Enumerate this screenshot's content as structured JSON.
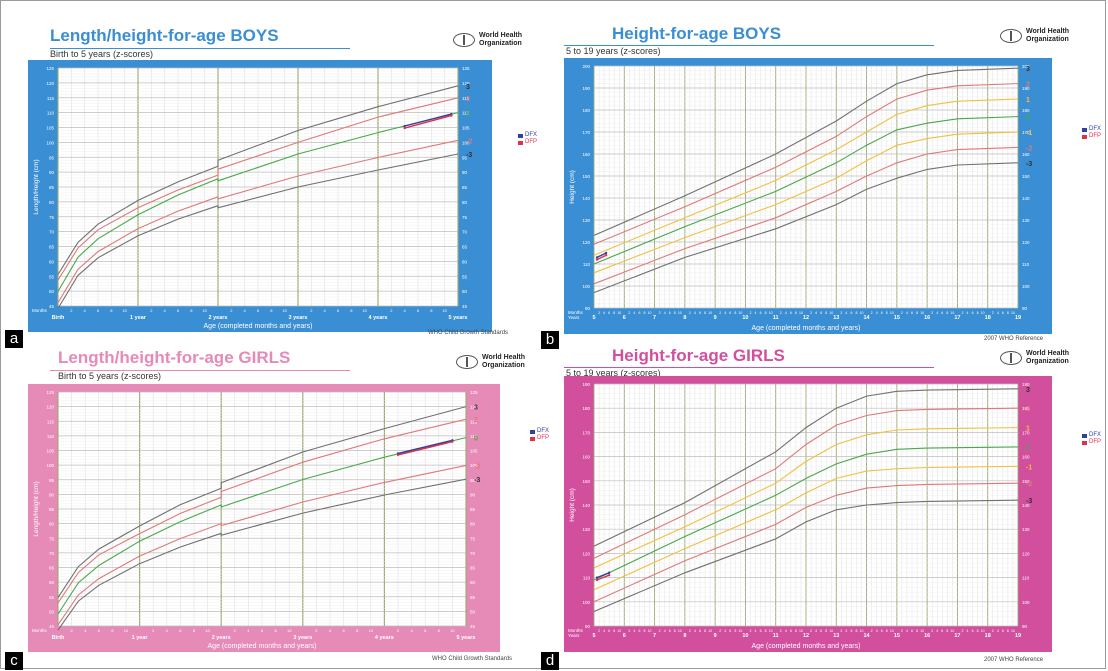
{
  "colors": {
    "blue_bg": "#3a8ed3",
    "pink_bg": "#e68ab8",
    "magenta_bg": "#d24f9d",
    "grid_minor": "#d9d9d9",
    "grid_major": "#9aa872",
    "curve_3": "#707070",
    "curve_2": "#e07878",
    "curve_1": "#f0c040",
    "curve_0": "#48a848",
    "patient_dfx": "#3040a0",
    "patient_dfp": "#e03050"
  },
  "legend": {
    "dfx": "DFX",
    "dfp": "DFP"
  },
  "chart_data": [
    {
      "type": "line",
      "panel_label": "a",
      "title": "Length/height-for-age BOYS",
      "subtitle": "Birth to 5 years (z-scores)",
      "org": "World Health Organization",
      "footnote": "WHO Child Growth Standards",
      "xlabel": "Age (completed months and years)",
      "ylabel": "Length/Height (cm)",
      "xlim": [
        0,
        60
      ],
      "ylim": [
        45,
        125
      ],
      "yticks": [
        45,
        50,
        55,
        60,
        65,
        70,
        75,
        80,
        85,
        90,
        95,
        100,
        105,
        110,
        115,
        120,
        125
      ],
      "x_months_label": "Months",
      "x_year_labels": [
        {
          "x": 0,
          "label": "Birth"
        },
        {
          "x": 12,
          "label": "1 year"
        },
        {
          "x": 24,
          "label": "2 years"
        },
        {
          "x": 36,
          "label": "3 years"
        },
        {
          "x": 48,
          "label": "4 years"
        },
        {
          "x": 60,
          "label": "5 years"
        }
      ],
      "series": [
        {
          "name": "3",
          "color": "curve_3",
          "x": [
            0,
            3,
            6,
            12,
            18,
            24,
            24,
            36,
            48,
            60
          ],
          "y": [
            55.6,
            66.4,
            72.5,
            80.5,
            86.7,
            92,
            94,
            104,
            112,
            119
          ]
        },
        {
          "name": "2",
          "color": "curve_2",
          "x": [
            0,
            3,
            6,
            12,
            18,
            24,
            24,
            36,
            48,
            60
          ],
          "y": [
            53.7,
            64.5,
            70.6,
            78,
            84,
            89,
            91,
            100,
            108.5,
            115
          ]
        },
        {
          "name": "0",
          "color": "curve_0",
          "x": [
            0,
            3,
            6,
            12,
            18,
            24,
            24,
            36,
            48,
            60
          ],
          "y": [
            49.9,
            61.4,
            67.6,
            75.7,
            82.3,
            87.8,
            87.1,
            96.1,
            103.3,
            110
          ]
        },
        {
          "name": "-2",
          "color": "curve_2",
          "x": [
            0,
            3,
            6,
            12,
            18,
            24,
            24,
            36,
            48,
            60
          ],
          "y": [
            46.1,
            57.3,
            63.3,
            71,
            76.9,
            81.7,
            81,
            88.7,
            94.9,
            100.7
          ]
        },
        {
          "name": "-3",
          "color": "curve_3",
          "x": [
            0,
            3,
            6,
            12,
            18,
            24,
            24,
            36,
            48,
            60
          ],
          "y": [
            44.2,
            55.3,
            61.2,
            68.6,
            74.2,
            78.7,
            78,
            85,
            90.7,
            96.1
          ]
        },
        {
          "name": "DFX",
          "color": "patient_dfx",
          "x": [
            52,
            59
          ],
          "y": [
            105.5,
            109.5
          ]
        },
        {
          "name": "DFP",
          "color": "patient_dfp",
          "x": [
            52,
            59
          ],
          "y": [
            104.8,
            109
          ]
        }
      ]
    },
    {
      "type": "line",
      "panel_label": "b",
      "title": "Height-for-age BOYS",
      "subtitle": "5 to 19 years (z-scores)",
      "org": "World Health Organization",
      "footnote": "2007 WHO Reference",
      "xlabel": "Age (completed months and years)",
      "ylabel": "Height (cm)",
      "xlim": [
        5,
        19
      ],
      "ylim": [
        90,
        200
      ],
      "yticks": [
        90,
        100,
        110,
        120,
        130,
        140,
        150,
        160,
        170,
        180,
        190,
        200
      ],
      "x_months_label": "Months",
      "x_years_label": "Years",
      "x_year_labels": [
        {
          "x": 5,
          "label": "5"
        },
        {
          "x": 6,
          "label": "6"
        },
        {
          "x": 7,
          "label": "7"
        },
        {
          "x": 8,
          "label": "8"
        },
        {
          "x": 9,
          "label": "9"
        },
        {
          "x": 10,
          "label": "10"
        },
        {
          "x": 11,
          "label": "11"
        },
        {
          "x": 12,
          "label": "12"
        },
        {
          "x": 13,
          "label": "13"
        },
        {
          "x": 14,
          "label": "14"
        },
        {
          "x": 15,
          "label": "15"
        },
        {
          "x": 16,
          "label": "16"
        },
        {
          "x": 17,
          "label": "17"
        },
        {
          "x": 18,
          "label": "18"
        },
        {
          "x": 19,
          "label": "19"
        }
      ],
      "series": [
        {
          "name": "3",
          "color": "curve_3",
          "x": [
            5,
            8,
            11,
            13,
            14,
            15,
            16,
            17,
            19
          ],
          "y": [
            123,
            141,
            160,
            175,
            184,
            192,
            196,
            198,
            199
          ]
        },
        {
          "name": "2",
          "color": "curve_2",
          "x": [
            5,
            8,
            11,
            13,
            14,
            15,
            16,
            17,
            19
          ],
          "y": [
            119,
            136,
            154,
            168,
            177,
            185,
            189,
            191,
            192
          ]
        },
        {
          "name": "1",
          "color": "curve_1",
          "x": [
            5,
            8,
            11,
            13,
            14,
            15,
            16,
            17,
            19
          ],
          "y": [
            114,
            131,
            148,
            162,
            170,
            178,
            182,
            184,
            185
          ]
        },
        {
          "name": "0",
          "color": "curve_0",
          "x": [
            5,
            8,
            11,
            13,
            14,
            15,
            16,
            17,
            19
          ],
          "y": [
            110,
            127,
            143,
            156,
            164,
            171,
            174,
            176,
            177
          ]
        },
        {
          "name": "-1",
          "color": "curve_1",
          "x": [
            5,
            8,
            11,
            13,
            14,
            15,
            16,
            17,
            19
          ],
          "y": [
            106,
            122,
            137,
            149,
            157,
            164,
            167,
            169,
            170
          ]
        },
        {
          "name": "-2",
          "color": "curve_2",
          "x": [
            5,
            8,
            11,
            13,
            14,
            15,
            16,
            17,
            19
          ],
          "y": [
            101,
            117,
            131,
            143,
            150,
            156,
            160,
            162,
            163
          ]
        },
        {
          "name": "-3",
          "color": "curve_3",
          "x": [
            5,
            8,
            11,
            13,
            14,
            15,
            16,
            17,
            19
          ],
          "y": [
            97,
            113,
            126,
            137,
            144,
            149,
            153,
            155,
            156
          ]
        },
        {
          "name": "DFX",
          "color": "patient_dfx",
          "x": [
            5.1,
            5.4
          ],
          "y": [
            113,
            115
          ]
        },
        {
          "name": "DFP",
          "color": "patient_dfp",
          "x": [
            5.1,
            5.4
          ],
          "y": [
            112,
            114
          ]
        }
      ]
    },
    {
      "type": "line",
      "panel_label": "c",
      "title": "Length/height-for-age GIRLS",
      "subtitle": "Birth to 5 years (z-scores)",
      "org": "World Health Organization",
      "footnote": "WHO Child Growth Standards",
      "xlabel": "Age (completed months and years)",
      "ylabel": "Length/Height (cm)",
      "xlim": [
        0,
        60
      ],
      "ylim": [
        45,
        125
      ],
      "yticks": [
        45,
        50,
        55,
        60,
        65,
        70,
        75,
        80,
        85,
        90,
        95,
        100,
        105,
        110,
        115,
        120,
        125
      ],
      "x_months_label": "Months",
      "x_year_labels": [
        {
          "x": 0,
          "label": "Birth"
        },
        {
          "x": 12,
          "label": "1 year"
        },
        {
          "x": 24,
          "label": "2 years"
        },
        {
          "x": 36,
          "label": "3 years"
        },
        {
          "x": 48,
          "label": "4 years"
        },
        {
          "x": 60,
          "label": "5 years"
        }
      ],
      "series": [
        {
          "name": "3",
          "color": "curve_3",
          "x": [
            0,
            3,
            6,
            12,
            18,
            24,
            24,
            36,
            48,
            60
          ],
          "y": [
            54.7,
            65.3,
            71.3,
            79.2,
            86.5,
            92.1,
            94,
            104.5,
            112.5,
            120
          ]
        },
        {
          "name": "2",
          "color": "curve_2",
          "x": [
            0,
            3,
            6,
            12,
            18,
            24,
            24,
            36,
            48,
            60
          ],
          "y": [
            52.9,
            63.3,
            69.3,
            76.6,
            83.5,
            89,
            91,
            101,
            109,
            115.7
          ]
        },
        {
          "name": "0",
          "color": "curve_0",
          "x": [
            0,
            3,
            6,
            12,
            18,
            24,
            24,
            36,
            48,
            60
          ],
          "y": [
            49.1,
            59.8,
            65.7,
            74,
            80.7,
            86.4,
            85.7,
            95.1,
            102.7,
            109.4
          ]
        },
        {
          "name": "-2",
          "color": "curve_2",
          "x": [
            0,
            3,
            6,
            12,
            18,
            24,
            24,
            36,
            48,
            60
          ],
          "y": [
            45.4,
            55.6,
            61.2,
            68.9,
            74.9,
            80,
            79.3,
            87.4,
            94.1,
            99.9
          ]
        },
        {
          "name": "-3",
          "color": "curve_3",
          "x": [
            0,
            3,
            6,
            12,
            18,
            24,
            24,
            36,
            48,
            60
          ],
          "y": [
            43.6,
            53.5,
            58.9,
            66.3,
            72,
            76.7,
            76,
            83.6,
            89.8,
            95.2
          ]
        },
        {
          "name": "DFX",
          "color": "patient_dfx",
          "x": [
            50,
            58
          ],
          "y": [
            104,
            108.5
          ]
        },
        {
          "name": "DFP",
          "color": "patient_dfp",
          "x": [
            50,
            58
          ],
          "y": [
            103.5,
            108
          ]
        }
      ]
    },
    {
      "type": "line",
      "panel_label": "d",
      "title": "Height-for-age GIRLS",
      "subtitle": "5 to 19 years (z-scores)",
      "org": "World Health Organization",
      "footnote": "2007 WHO Reference",
      "xlabel": "Age (completed months and years)",
      "ylabel": "Height (cm)",
      "xlim": [
        5,
        19
      ],
      "ylim": [
        90,
        190
      ],
      "yticks": [
        90,
        100,
        110,
        120,
        130,
        140,
        150,
        160,
        170,
        180,
        190
      ],
      "x_months_label": "Months",
      "x_years_label": "Years",
      "x_year_labels": [
        {
          "x": 5,
          "label": "5"
        },
        {
          "x": 6,
          "label": "6"
        },
        {
          "x": 7,
          "label": "7"
        },
        {
          "x": 8,
          "label": "8"
        },
        {
          "x": 9,
          "label": "9"
        },
        {
          "x": 10,
          "label": "10"
        },
        {
          "x": 11,
          "label": "11"
        },
        {
          "x": 12,
          "label": "12"
        },
        {
          "x": 13,
          "label": "13"
        },
        {
          "x": 14,
          "label": "14"
        },
        {
          "x": 15,
          "label": "15"
        },
        {
          "x": 16,
          "label": "16"
        },
        {
          "x": 17,
          "label": "17"
        },
        {
          "x": 18,
          "label": "18"
        },
        {
          "x": 19,
          "label": "19"
        }
      ],
      "series": [
        {
          "name": "3",
          "color": "curve_3",
          "x": [
            5,
            8,
            11,
            12,
            13,
            14,
            15,
            16,
            19
          ],
          "y": [
            123,
            141,
            162,
            172,
            180,
            185,
            187,
            187.5,
            188
          ]
        },
        {
          "name": "2",
          "color": "curve_2",
          "x": [
            5,
            8,
            11,
            12,
            13,
            14,
            15,
            16,
            19
          ],
          "y": [
            118,
            136,
            155,
            165,
            173,
            177,
            179,
            179.5,
            180
          ]
        },
        {
          "name": "1",
          "color": "curve_1",
          "x": [
            5,
            8,
            11,
            12,
            13,
            14,
            15,
            16,
            19
          ],
          "y": [
            114,
            131,
            149,
            158,
            165,
            169,
            171,
            171.5,
            172
          ]
        },
        {
          "name": "0",
          "color": "curve_0",
          "x": [
            5,
            8,
            11,
            12,
            13,
            14,
            15,
            16,
            19
          ],
          "y": [
            109,
            127,
            144,
            151,
            157,
            161,
            163,
            163.5,
            164
          ]
        },
        {
          "name": "-1",
          "color": "curve_1",
          "x": [
            5,
            8,
            11,
            12,
            13,
            14,
            15,
            16,
            19
          ],
          "y": [
            105,
            122,
            138,
            145,
            151,
            154,
            155,
            155.5,
            156
          ]
        },
        {
          "name": "-2",
          "color": "curve_2",
          "x": [
            5,
            8,
            11,
            12,
            13,
            14,
            15,
            16,
            19
          ],
          "y": [
            100,
            117,
            132,
            139,
            144,
            147,
            148,
            148.5,
            149
          ]
        },
        {
          "name": "-3",
          "color": "curve_3",
          "x": [
            5,
            8,
            11,
            12,
            13,
            14,
            15,
            16,
            19
          ],
          "y": [
            96,
            112,
            126,
            133,
            138,
            140,
            141,
            141.5,
            142
          ]
        },
        {
          "name": "DFX",
          "color": "patient_dfx",
          "x": [
            5.1,
            5.5
          ],
          "y": [
            110,
            112
          ]
        },
        {
          "name": "DFP",
          "color": "patient_dfp",
          "x": [
            5.1,
            5.5
          ],
          "y": [
            109,
            111
          ]
        }
      ]
    }
  ]
}
